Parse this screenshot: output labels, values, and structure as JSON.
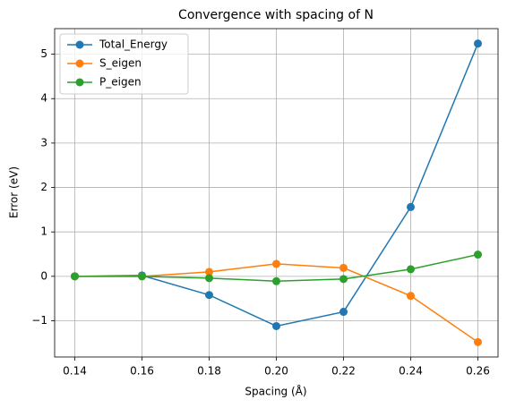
{
  "chart_data": {
    "type": "line",
    "title": "Convergence with spacing of N",
    "x_label": "Spacing (Å)",
    "y_label": "Error (eV)",
    "x": [
      0.14,
      0.16,
      0.18,
      0.2,
      0.22,
      0.24,
      0.26
    ],
    "series": [
      {
        "name": "Total_Energy",
        "color": "#1f77b4",
        "values": [
          0,
          0.02,
          -0.42,
          -1.12,
          -0.8,
          1.56,
          5.24
        ]
      },
      {
        "name": "S_eigen",
        "color": "#ff7f0e",
        "values": [
          0,
          0,
          0.1,
          0.28,
          0.19,
          -0.44,
          -1.48
        ]
      },
      {
        "name": "P_eigen",
        "color": "#2ca02c",
        "values": [
          0,
          0,
          -0.04,
          -0.11,
          -0.06,
          0.16,
          0.49
        ]
      }
    ],
    "xlim": [
      0.134,
      0.266
    ],
    "ylim": [
      -1.816,
      5.576
    ],
    "xticks": [
      0.14,
      0.16,
      0.18,
      {
        "value": 0.2,
        "label": "0.20"
      },
      0.22,
      0.24,
      0.26
    ],
    "yticks": [
      {
        "value": -1,
        "label": "−1"
      },
      0,
      1,
      2,
      3,
      4,
      5
    ],
    "grid": true,
    "legend": "upper-left"
  }
}
